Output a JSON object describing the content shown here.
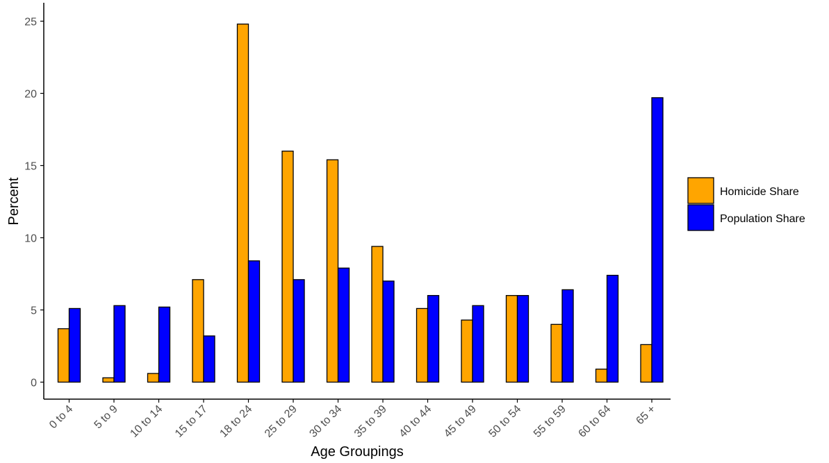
{
  "chart_data": {
    "type": "bar",
    "title": "",
    "xlabel": "Age Groupings",
    "ylabel": "Percent",
    "ylim": [
      0,
      25
    ],
    "yticks": [
      0,
      5,
      10,
      15,
      20,
      25
    ],
    "grid": false,
    "legend_position": "right",
    "categories": [
      "0 to 4",
      "5 to 9",
      "10 to 14",
      "15 to 17",
      "18 to 24",
      "25 to 29",
      "30 to 34",
      "35 to 39",
      "40 to 44",
      "45 to 49",
      "50 to 54",
      "55 to 59",
      "60 to 64",
      "65 +"
    ],
    "series": [
      {
        "name": "Homicide Share",
        "color": "#FFA500",
        "values": [
          3.7,
          0.3,
          0.6,
          7.1,
          24.8,
          16.0,
          15.4,
          9.4,
          5.1,
          4.3,
          6.0,
          4.0,
          0.9,
          2.6
        ]
      },
      {
        "name": "Population Share",
        "color": "#0000FF",
        "values": [
          5.1,
          5.3,
          5.2,
          3.2,
          8.4,
          7.1,
          7.9,
          7.0,
          6.0,
          5.3,
          6.0,
          6.4,
          7.4,
          19.7
        ]
      }
    ]
  }
}
